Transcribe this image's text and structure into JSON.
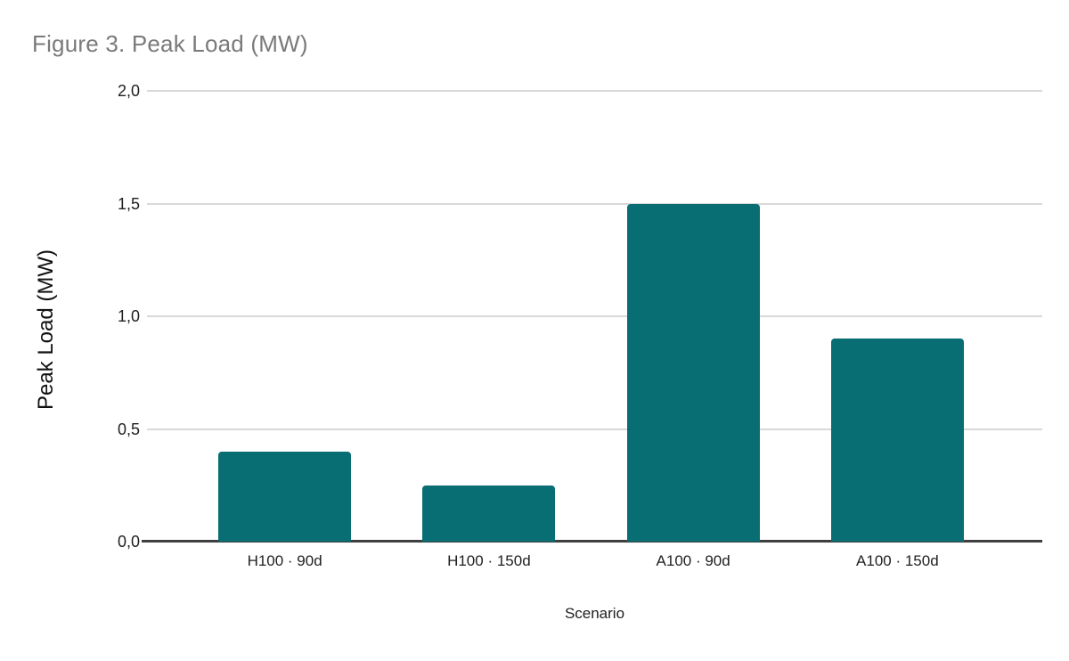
{
  "figure": {
    "title": "Figure 3. Peak Load (MW)"
  },
  "colors": {
    "bar": "#086E74",
    "gridline": "#d9d9d9",
    "axis_line": "#3f3f3f",
    "title_gray": "#7a7a7a",
    "text": "#1f1f1f"
  },
  "chart_data": {
    "type": "bar",
    "title": "Figure 3. Peak Load (MW)",
    "categories": [
      "H100 · 90d",
      "H100 · 150d",
      "A100 · 90d",
      "A100 · 150d"
    ],
    "values": [
      0.4,
      0.25,
      1.5,
      0.9
    ],
    "series_color": "#086E74",
    "xlabel": "Scenario",
    "ylabel": "Peak Load (MW)",
    "ylim": [
      0,
      2
    ],
    "yticks_labels": [
      "2,0",
      "1,5",
      "1,0",
      "0,5",
      "0,0"
    ],
    "yticks_values": [
      2.0,
      1.5,
      1.0,
      0.5,
      0.0
    ],
    "decimal_separator": ",",
    "grid": true,
    "legend": false
  }
}
